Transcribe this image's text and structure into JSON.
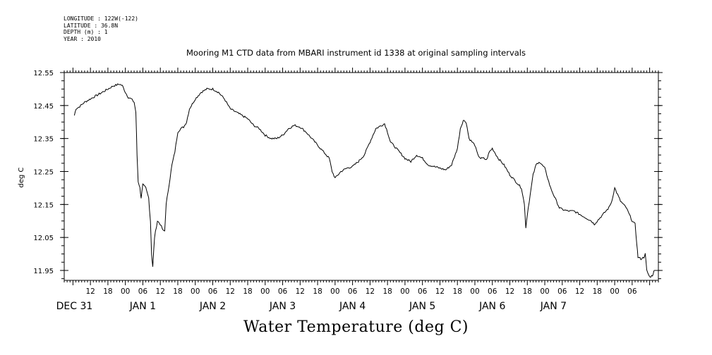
{
  "header": {
    "longitude": "LONGITUDE : 122W(-122)",
    "latitude": "LATITUDE : 36.8N",
    "depth": "DEPTH (m) : 1",
    "year": "YEAR : 2010"
  },
  "chart_data": {
    "type": "line",
    "title": "Mooring M1 CTD data from MBARI instrument id 1338 at original sampling intervals",
    "xlabel": "Water Temperature (deg C)",
    "ylabel": "deg C",
    "ylim": [
      11.92,
      12.55
    ],
    "y_ticks": [
      "12.55",
      "12.45",
      "12.35",
      "12.25",
      "12.15",
      "12.05",
      "11.95"
    ],
    "x_hour_ticks": [
      "12",
      "18",
      "00",
      "06",
      "12",
      "18",
      "00",
      "06",
      "12",
      "18",
      "00",
      "06",
      "12",
      "18",
      "00",
      "06",
      "12",
      "18",
      "00",
      "06",
      "12",
      "18",
      "00",
      "06",
      "12",
      "18",
      "00",
      "06",
      "12",
      "18",
      "00",
      "06"
    ],
    "x_day_labels": [
      "DEC 31",
      "JAN  1",
      "JAN  2",
      "JAN  3",
      "JAN  4",
      "JAN  5",
      "JAN  6",
      "JAN  7"
    ],
    "x_units": "hours since DEC 31 00:00",
    "series": [
      {
        "values": [
          [
            6.5,
            12.42
          ],
          [
            7,
            12.44
          ],
          [
            8,
            12.445
          ],
          [
            10,
            12.46
          ],
          [
            12,
            12.47
          ],
          [
            14,
            12.48
          ],
          [
            16,
            12.49
          ],
          [
            18,
            12.5
          ],
          [
            20,
            12.51
          ],
          [
            22,
            12.515
          ],
          [
            23,
            12.51
          ],
          [
            24,
            12.49
          ],
          [
            25,
            12.475
          ],
          [
            26,
            12.47
          ],
          [
            27,
            12.46
          ],
          [
            27.6,
            12.43
          ],
          [
            28,
            12.3
          ],
          [
            28.4,
            12.22
          ],
          [
            29,
            12.2
          ],
          [
            29.4,
            12.17
          ],
          [
            30,
            12.21
          ],
          [
            31,
            12.2
          ],
          [
            32,
            12.17
          ],
          [
            32.6,
            12.1
          ],
          [
            33,
            12.0
          ],
          [
            33.4,
            11.96
          ],
          [
            34,
            12.05
          ],
          [
            35,
            12.1
          ],
          [
            36,
            12.09
          ],
          [
            37,
            12.07
          ],
          [
            37.5,
            12.07
          ],
          [
            38,
            12.15
          ],
          [
            39,
            12.21
          ],
          [
            40,
            12.27
          ],
          [
            41,
            12.31
          ],
          [
            42,
            12.37
          ],
          [
            43,
            12.38
          ],
          [
            44,
            12.385
          ],
          [
            45,
            12.4
          ],
          [
            46,
            12.44
          ],
          [
            48,
            12.47
          ],
          [
            50,
            12.49
          ],
          [
            52,
            12.5
          ],
          [
            54,
            12.5
          ],
          [
            56,
            12.49
          ],
          [
            58,
            12.47
          ],
          [
            60,
            12.44
          ],
          [
            62,
            12.43
          ],
          [
            64,
            12.42
          ],
          [
            66,
            12.41
          ],
          [
            68,
            12.39
          ],
          [
            70,
            12.38
          ],
          [
            72,
            12.36
          ],
          [
            74,
            12.35
          ],
          [
            76,
            12.35
          ],
          [
            78,
            12.36
          ],
          [
            80,
            12.38
          ],
          [
            82,
            12.39
          ],
          [
            84,
            12.385
          ],
          [
            86,
            12.37
          ],
          [
            88,
            12.35
          ],
          [
            90,
            12.33
          ],
          [
            92,
            12.31
          ],
          [
            94,
            12.29
          ],
          [
            95,
            12.25
          ],
          [
            96,
            12.23
          ],
          [
            97,
            12.24
          ],
          [
            98,
            12.25
          ],
          [
            100,
            12.26
          ],
          [
            102,
            12.265
          ],
          [
            104,
            12.28
          ],
          [
            106,
            12.3
          ],
          [
            108,
            12.34
          ],
          [
            110,
            12.38
          ],
          [
            112,
            12.39
          ],
          [
            113,
            12.395
          ],
          [
            114,
            12.37
          ],
          [
            115,
            12.34
          ],
          [
            116,
            12.33
          ],
          [
            118,
            12.31
          ],
          [
            120,
            12.29
          ],
          [
            122,
            12.28
          ],
          [
            124,
            12.3
          ],
          [
            126,
            12.29
          ],
          [
            128,
            12.27
          ],
          [
            130,
            12.265
          ],
          [
            132,
            12.26
          ],
          [
            134,
            12.255
          ],
          [
            136,
            12.27
          ],
          [
            138,
            12.32
          ],
          [
            139,
            12.38
          ],
          [
            140,
            12.405
          ],
          [
            141,
            12.4
          ],
          [
            142,
            12.35
          ],
          [
            143,
            12.34
          ],
          [
            144,
            12.33
          ],
          [
            145,
            12.3
          ],
          [
            146,
            12.29
          ],
          [
            147,
            12.29
          ],
          [
            148,
            12.285
          ],
          [
            149,
            12.31
          ],
          [
            150,
            12.32
          ],
          [
            152,
            12.29
          ],
          [
            154,
            12.27
          ],
          [
            156,
            12.24
          ],
          [
            158,
            12.22
          ],
          [
            160,
            12.2
          ],
          [
            161,
            12.15
          ],
          [
            161.5,
            12.08
          ],
          [
            162,
            12.12
          ],
          [
            163,
            12.18
          ],
          [
            164,
            12.24
          ],
          [
            165,
            12.27
          ],
          [
            166,
            12.28
          ],
          [
            167,
            12.27
          ],
          [
            168,
            12.26
          ],
          [
            170,
            12.2
          ],
          [
            172,
            12.16
          ],
          [
            173,
            12.14
          ],
          [
            174,
            12.135
          ],
          [
            176,
            12.13
          ],
          [
            178,
            12.13
          ],
          [
            180,
            12.12
          ],
          [
            182,
            12.11
          ],
          [
            184,
            12.1
          ],
          [
            185,
            12.09
          ],
          [
            186,
            12.1
          ],
          [
            188,
            12.12
          ],
          [
            190,
            12.14
          ],
          [
            191,
            12.16
          ],
          [
            192,
            12.2
          ],
          [
            193,
            12.18
          ],
          [
            194,
            12.16
          ],
          [
            196,
            12.14
          ],
          [
            197,
            12.12
          ],
          [
            198,
            12.1
          ],
          [
            199,
            12.09
          ],
          [
            199.6,
            12.03
          ],
          [
            200,
            11.99
          ],
          [
            201,
            11.985
          ],
          [
            202,
            11.99
          ],
          [
            202.5,
            12.0
          ],
          [
            203,
            11.95
          ],
          [
            204,
            11.93
          ],
          [
            205,
            11.935
          ],
          [
            205.5,
            11.95
          ]
        ]
      }
    ],
    "colors": {
      "line": "#000000",
      "axes": "#000000",
      "background": "#ffffff"
    }
  }
}
